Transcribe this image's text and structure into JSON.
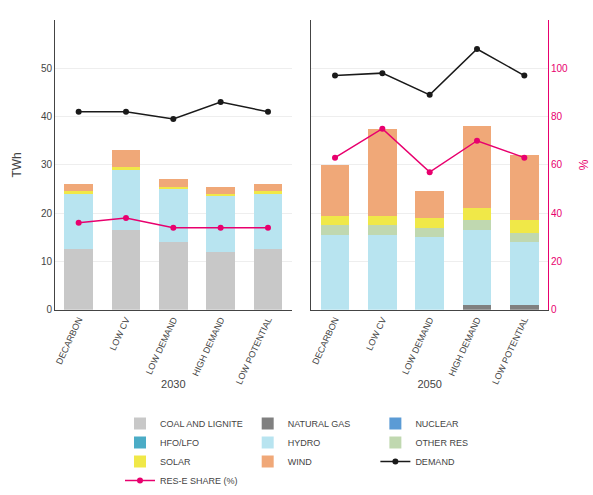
{
  "chart_data": [
    {
      "type": "bar",
      "stacked": true,
      "grid": true,
      "legend": "bottom",
      "xlabel": "2030",
      "ylabel": "TWh",
      "categories": [
        "DECARBON",
        "LOW CV",
        "LOW DEMAND",
        "HIGH DEMAND",
        "LOW POTENTIAL"
      ],
      "ylim": [
        0,
        60
      ],
      "yticks": [
        0,
        10,
        20,
        30,
        40,
        50
      ],
      "y2lim": [
        0,
        120
      ],
      "series": [
        {
          "name": "COAL AND LIGNITE",
          "color": "#c8c8c8",
          "values": [
            12.5,
            16.5,
            14.0,
            12.0,
            12.5
          ]
        },
        {
          "name": "NATURAL GAS",
          "color": "#808080",
          "values": [
            null,
            null,
            null,
            null,
            null
          ]
        },
        {
          "name": "NUCLEAR",
          "color": "#5b9bd5",
          "values": [
            null,
            null,
            null,
            null,
            null
          ]
        },
        {
          "name": "HFO/LFO",
          "color": "#4bacc6",
          "values": [
            null,
            null,
            null,
            null,
            null
          ]
        },
        {
          "name": "HYDRO",
          "color": "#b8e4f0",
          "values": [
            11.5,
            12.5,
            11.0,
            11.5,
            11.5
          ]
        },
        {
          "name": "OTHER RES",
          "color": "#c0d8b0",
          "values": [
            0,
            0,
            0,
            0,
            0
          ]
        },
        {
          "name": "SOLAR",
          "color": "#f0e848",
          "values": [
            0.5,
            0.5,
            0.5,
            0.5,
            0.5
          ]
        },
        {
          "name": "WIND",
          "color": "#f0a878",
          "values": [
            1.5,
            3.5,
            1.5,
            1.5,
            1.5
          ]
        },
        {
          "name": "DEMAND",
          "color": "#1a1a1a",
          "type": "line",
          "marker": "circle",
          "values": [
            41.0,
            41.0,
            39.5,
            43.0,
            41.0
          ]
        },
        {
          "name": "RES-E SHARE (%)",
          "color": "#e8006e",
          "type": "line",
          "marker": "circle",
          "axis": "y2",
          "values": [
            36,
            38,
            34,
            34,
            34
          ]
        }
      ]
    },
    {
      "type": "bar",
      "stacked": true,
      "grid": true,
      "xlabel": "2050",
      "y2label": "%",
      "categories": [
        "DECARBON",
        "LOW CV",
        "LOW DEMAND",
        "HIGH DEMAND",
        "LOW POTENTIAL"
      ],
      "ylim": [
        0,
        60
      ],
      "y2lim": [
        0,
        120
      ],
      "y2ticks": [
        0,
        20,
        40,
        60,
        80,
        100
      ],
      "series": [
        {
          "name": "COAL AND LIGNITE",
          "color": "#c8c8c8",
          "values": [
            null,
            null,
            null,
            null,
            null
          ]
        },
        {
          "name": "NATURAL GAS",
          "color": "#808080",
          "values": [
            0,
            0,
            0,
            1.0,
            1.0
          ]
        },
        {
          "name": "NUCLEAR",
          "color": "#5b9bd5",
          "values": [
            null,
            null,
            null,
            null,
            null
          ]
        },
        {
          "name": "HFO/LFO",
          "color": "#4bacc6",
          "values": [
            null,
            null,
            null,
            null,
            null
          ]
        },
        {
          "name": "HYDRO",
          "color": "#b8e4f0",
          "values": [
            15.5,
            15.5,
            15.0,
            15.5,
            13.0
          ]
        },
        {
          "name": "OTHER RES",
          "color": "#c0d8b0",
          "values": [
            2.0,
            2.0,
            2.0,
            2.0,
            2.0
          ]
        },
        {
          "name": "SOLAR",
          "color": "#f0e848",
          "values": [
            2.0,
            2.0,
            2.0,
            2.5,
            2.5
          ]
        },
        {
          "name": "WIND",
          "color": "#f0a878",
          "values": [
            10.5,
            18.0,
            5.5,
            17.0,
            13.5
          ]
        },
        {
          "name": "DEMAND",
          "color": "#1a1a1a",
          "type": "line",
          "marker": "circle",
          "values": [
            48.5,
            49.0,
            44.5,
            54.0,
            48.5
          ]
        },
        {
          "name": "RES-E SHARE (%)",
          "color": "#e8006e",
          "type": "line",
          "marker": "circle",
          "axis": "y2",
          "values": [
            63,
            75,
            57,
            70,
            63
          ]
        }
      ]
    }
  ]
}
